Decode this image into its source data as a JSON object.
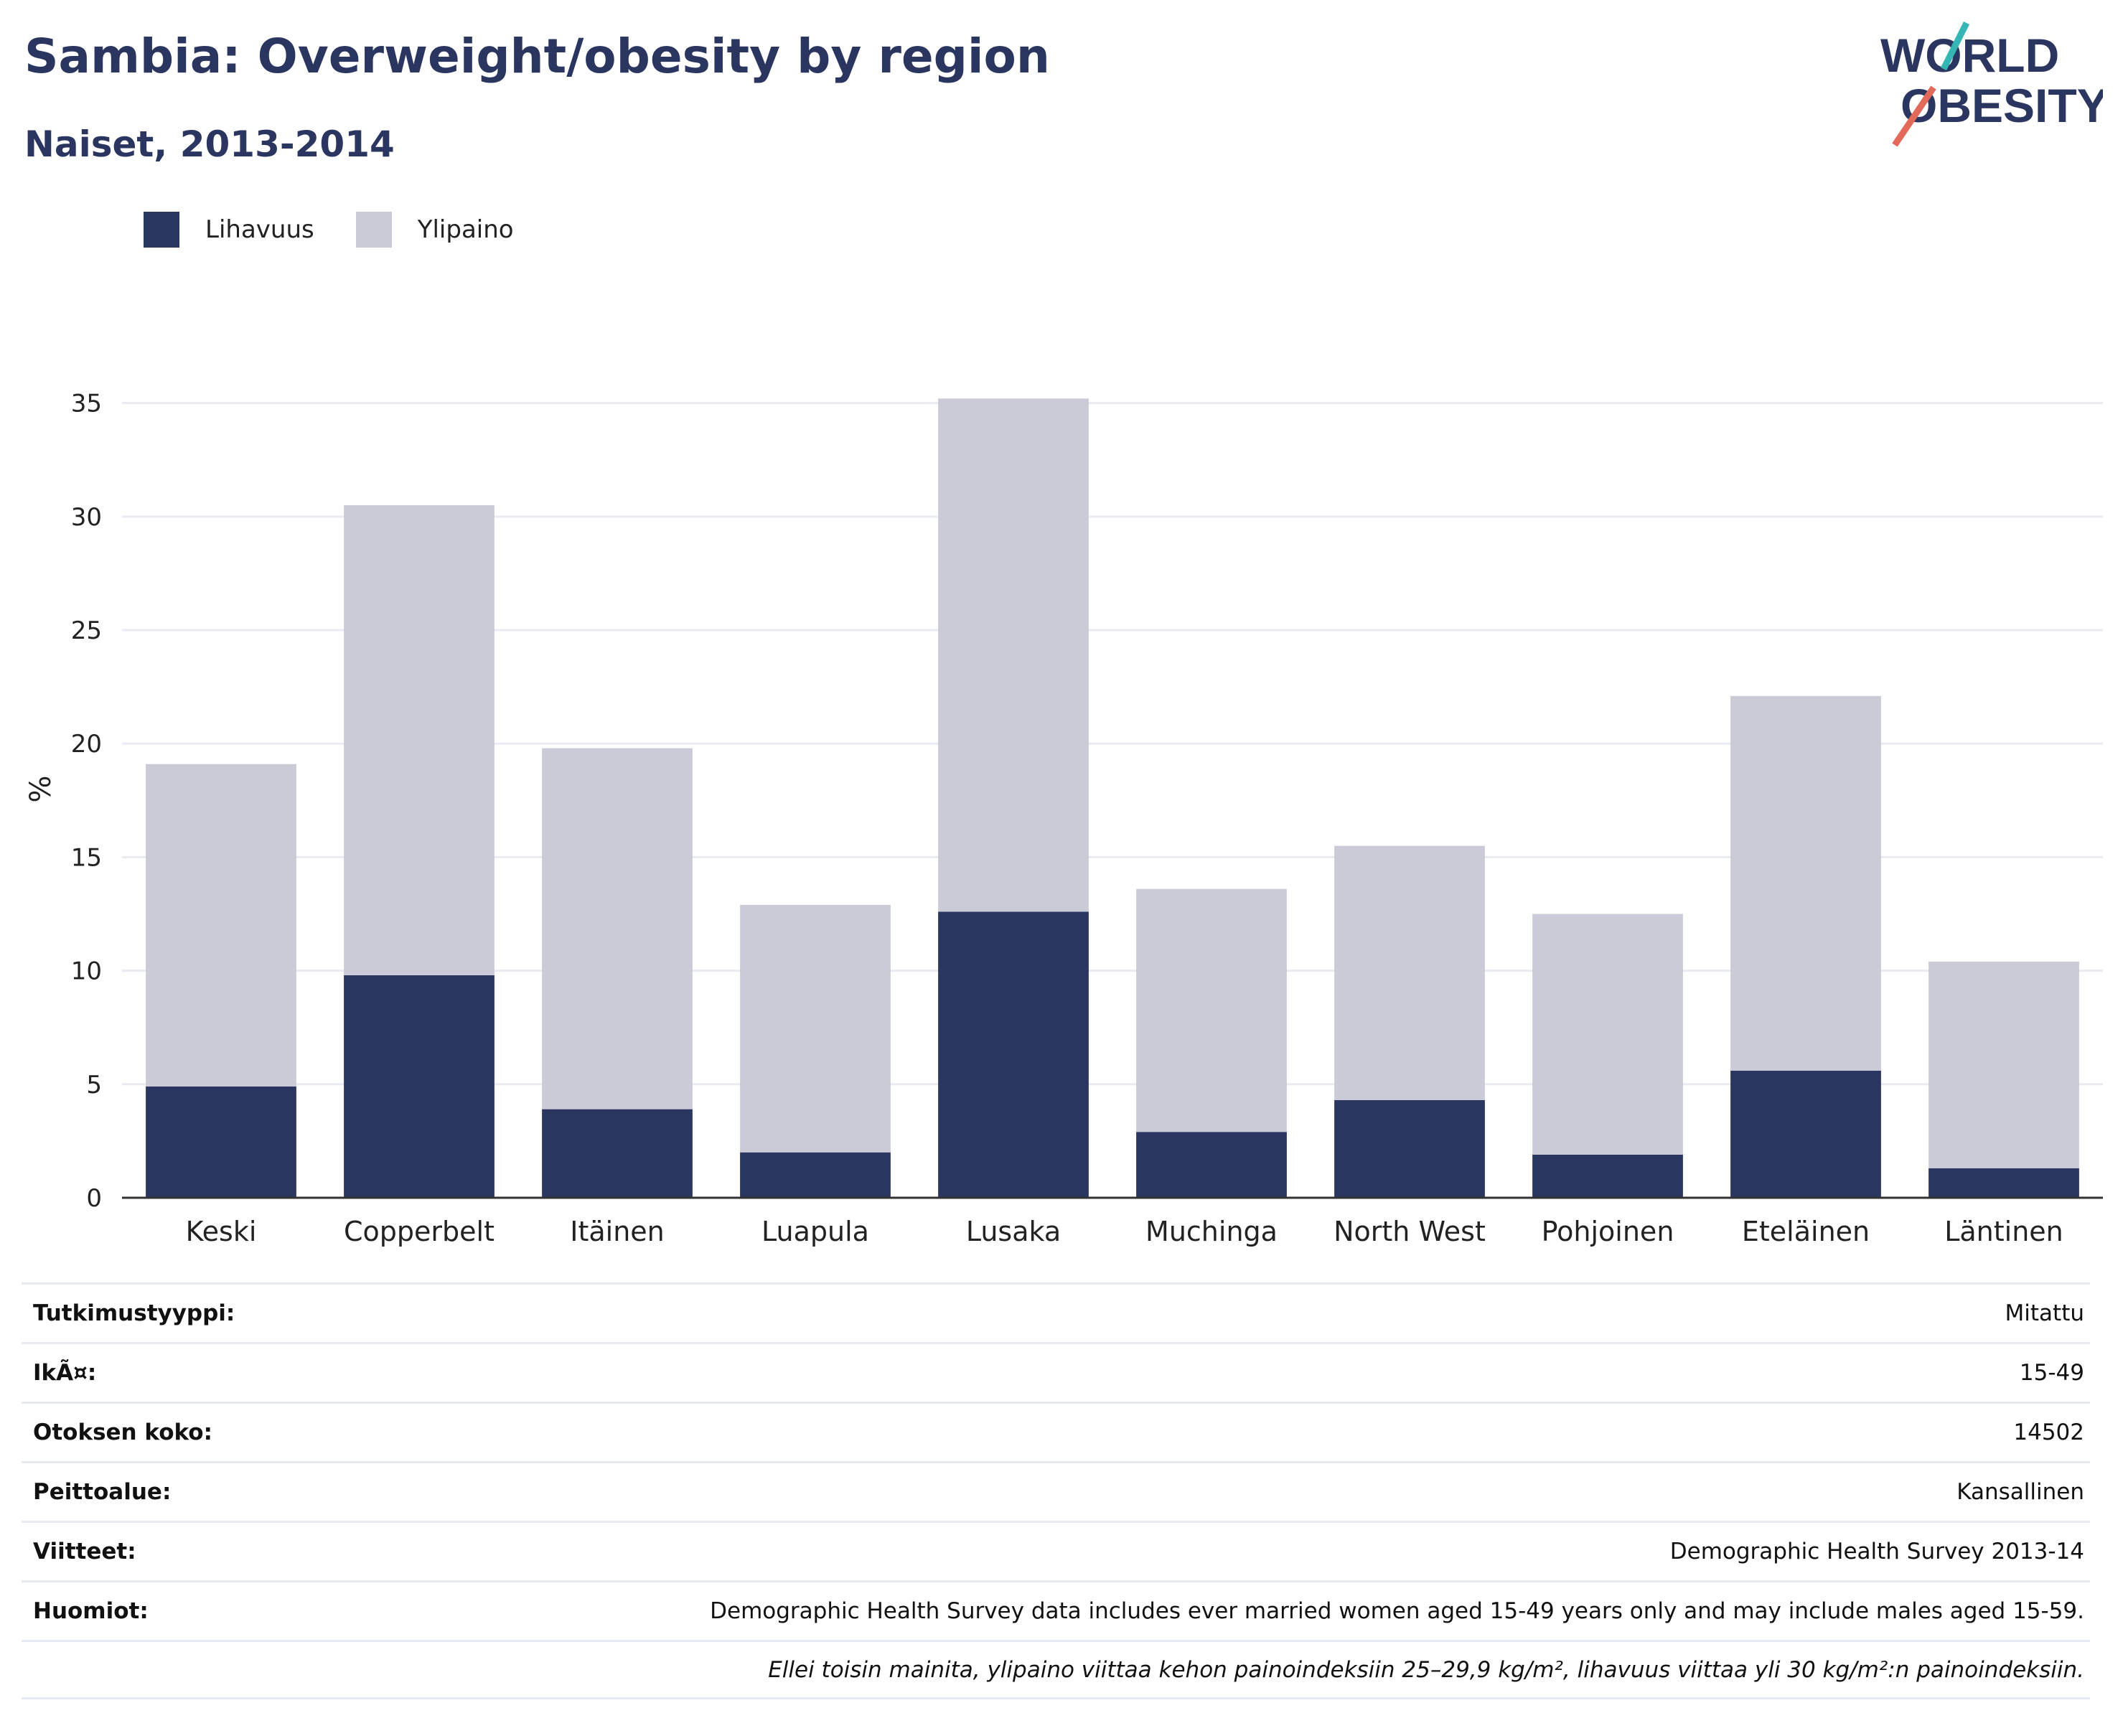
{
  "header": {
    "title": "Sambia: Overweight/obesity by region",
    "subtitle": "Naiset, 2013-2014"
  },
  "logo": {
    "line1": "WORLD",
    "line2": "OBESITY",
    "accent_teal": "#35b6b4",
    "accent_coral": "#e26a5b"
  },
  "colors": {
    "obesity": "#2a3560",
    "overweight": "#cacbd7",
    "grid": "#e9eaf2",
    "axis": "#333333"
  },
  "chart_data": {
    "type": "bar",
    "stacked": true,
    "categories": [
      "Keski",
      "Copperbelt",
      "Itäinen",
      "Luapula",
      "Lusaka",
      "Muchinga",
      "North West",
      "Pohjoinen",
      "Eteläinen",
      "Läntinen"
    ],
    "series": [
      {
        "name": "Lihavuus",
        "values": [
          4.9,
          9.8,
          3.9,
          2.0,
          12.6,
          2.9,
          4.3,
          1.9,
          5.6,
          1.3
        ]
      },
      {
        "name": "Ylipaino",
        "values": [
          14.2,
          20.7,
          15.9,
          10.9,
          22.6,
          10.7,
          11.2,
          10.6,
          16.5,
          9.1
        ]
      }
    ],
    "xlabel": "",
    "ylabel": "%",
    "ylim": [
      0,
      36
    ],
    "yticks": [
      0,
      5,
      10,
      15,
      20,
      25,
      30,
      35
    ],
    "grid": true,
    "legend": "top-left"
  },
  "info_table": [
    {
      "label": "Tutkimustyyppi:",
      "value": "Mitattu"
    },
    {
      "label": "IkÃ¤:",
      "value": "15-49"
    },
    {
      "label": "Otoksen koko:",
      "value": "14502"
    },
    {
      "label": "Peittoalue:",
      "value": "Kansallinen"
    },
    {
      "label": "Viitteet:",
      "value": "Demographic Health Survey 2013-14"
    },
    {
      "label": "Huomiot:",
      "value": "Demographic Health Survey data includes ever married women aged 15-49 years only and may include males aged 15-59."
    }
  ],
  "footnote": "Ellei toisin mainita, ylipaino viittaa kehon painoindeksiin 25–29,9 kg/m², lihavuus viittaa yli 30 kg/m²:n painoindeksiin."
}
